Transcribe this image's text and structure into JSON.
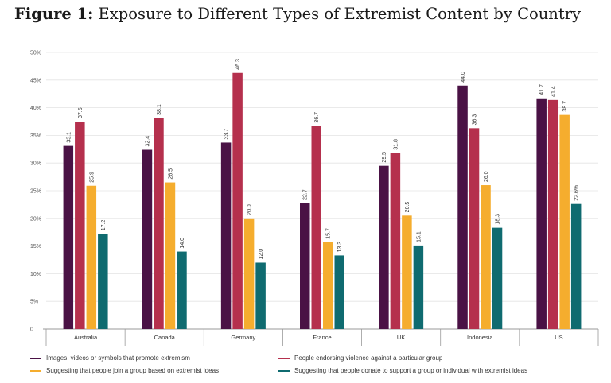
{
  "title_prefix": "Figure 1:",
  "title_text": "Exposure to Different Types of Extremist Content by Country",
  "chart_data": {
    "type": "bar",
    "title": "Figure 1: Exposure to Different Types of Extremist Content by Country",
    "xlabel": "",
    "ylabel": "",
    "ylim": [
      0,
      50
    ],
    "yticks": [
      "0",
      "5%",
      "10%",
      "15%",
      "20%",
      "25%",
      "30%",
      "35%",
      "40%",
      "45%",
      "50%"
    ],
    "grid": true,
    "legend_position": "bottom",
    "categories": [
      "Australia",
      "Canada",
      "Germany",
      "France",
      "UK",
      "Indonesia",
      "US"
    ],
    "series": [
      {
        "name": "Images, videos or symbols that promote extremism",
        "color": "#4a1245",
        "values": [
          33.1,
          32.4,
          33.7,
          22.7,
          29.5,
          44.0,
          41.7
        ],
        "labels": [
          "33.1",
          "32.4",
          "33.7",
          "22.7",
          "29.5",
          "44.0",
          "41.7"
        ]
      },
      {
        "name": "People endorsing violence against a particular  group",
        "color": "#b5304d",
        "values": [
          37.5,
          38.1,
          46.3,
          36.7,
          31.8,
          36.3,
          41.4
        ],
        "labels": [
          "37.5",
          "38.1",
          "46.3",
          "36.7",
          "31.8",
          "36.3",
          "41.4"
        ]
      },
      {
        "name": "Suggesting that people join a group based on extremist ideas",
        "color": "#f5ad2e",
        "values": [
          25.9,
          26.5,
          20.0,
          15.7,
          20.5,
          26.0,
          38.7
        ],
        "labels": [
          "25.9",
          "26.5",
          "20.0",
          "15.7",
          "20.5",
          "26.0",
          "38.7"
        ]
      },
      {
        "name": "Suggesting that people donate to support a group or individual with extremist ideas",
        "color": "#0f6b70",
        "values": [
          17.2,
          14.0,
          12.0,
          13.3,
          15.1,
          18.3,
          22.6
        ],
        "labels": [
          "17.2",
          "14.0",
          "12.0",
          "13.3",
          "15.1",
          "18.3",
          "22.6%"
        ]
      }
    ]
  }
}
